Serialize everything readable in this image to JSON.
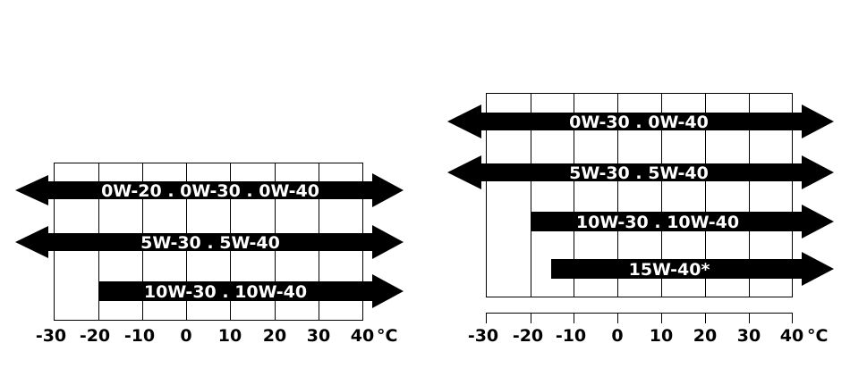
{
  "colors": {
    "arrow": "#000000",
    "grid": "#000000",
    "label": "#ffffff",
    "background": "#ffffff"
  },
  "unit": "°C",
  "tick_labels": [
    "-30",
    "-20",
    "-10",
    "0",
    "10",
    "20",
    "30",
    "40"
  ],
  "charts": [
    {
      "arrows": [
        {
          "label": "0W-20 . 0W-30 . 0W-40",
          "from": "<-30",
          "to": ">40"
        },
        {
          "label": "5W-30 . 5W-40",
          "from": "<-30",
          "to": ">40"
        },
        {
          "label": "10W-30 . 10W-40",
          "from": "-20",
          "to": ">40"
        }
      ]
    },
    {
      "arrows": [
        {
          "label": "0W-30 . 0W-40",
          "from": "<-30",
          "to": ">40"
        },
        {
          "label": "5W-30 . 5W-40",
          "from": "<-30",
          "to": ">40"
        },
        {
          "label": "10W-30 . 10W-40",
          "from": "-20",
          "to": ">40"
        },
        {
          "label": "15W-40*",
          "from": "-15",
          "to": ">40"
        }
      ]
    }
  ]
}
